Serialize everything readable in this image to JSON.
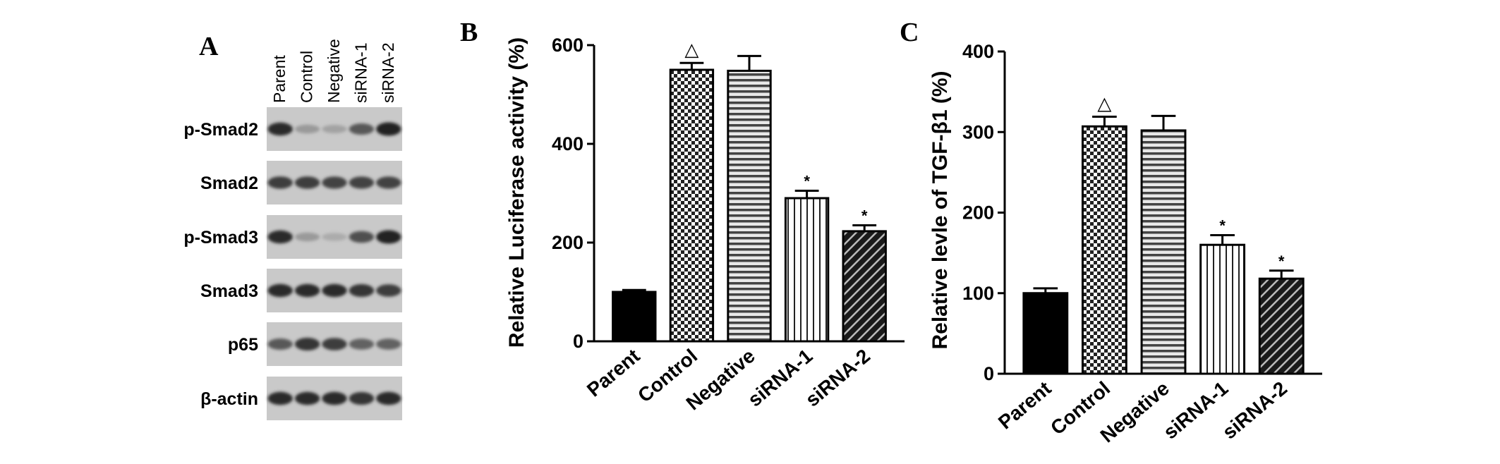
{
  "panel_a": {
    "label": "A",
    "lanes": [
      "Parent",
      "Control",
      "Negative",
      "siRNA-1",
      "siRNA-2"
    ],
    "rows": [
      {
        "label": "p-Smad2",
        "intensity": [
          0.85,
          0.25,
          0.2,
          0.6,
          0.9
        ]
      },
      {
        "label": "Smad2",
        "intensity": [
          0.75,
          0.75,
          0.72,
          0.72,
          0.72
        ]
      },
      {
        "label": "p-Smad3",
        "intensity": [
          0.85,
          0.25,
          0.15,
          0.65,
          0.9
        ]
      },
      {
        "label": "Smad3",
        "intensity": [
          0.85,
          0.85,
          0.85,
          0.8,
          0.75
        ]
      },
      {
        "label": "p65",
        "intensity": [
          0.6,
          0.8,
          0.75,
          0.55,
          0.55
        ]
      },
      {
        "label": "β-actin",
        "intensity": [
          0.85,
          0.85,
          0.85,
          0.8,
          0.85
        ]
      }
    ]
  },
  "chart_data": [
    {
      "type": "bar",
      "panel_label": "B",
      "categories": [
        "Parent",
        "Control",
        "Negative",
        "siRNA-1",
        "siRNA-2"
      ],
      "values": [
        100,
        550,
        548,
        290,
        223
      ],
      "errors": [
        4,
        14,
        30,
        15,
        12
      ],
      "annotations": [
        "",
        "△",
        "",
        "*",
        "*"
      ],
      "patterns": [
        "solid",
        "checker",
        "hstripes",
        "vstripes",
        "diagonal"
      ],
      "ylabel": "Relative Luciferase activity (%)",
      "ylim": [
        0,
        600
      ],
      "yticks": [
        0,
        200,
        400,
        600
      ]
    },
    {
      "type": "bar",
      "panel_label": "C",
      "categories": [
        "Parent",
        "Control",
        "Negative",
        "siRNA-1",
        "siRNA-2"
      ],
      "values": [
        100,
        307,
        302,
        160,
        118
      ],
      "errors": [
        6,
        12,
        18,
        12,
        10
      ],
      "annotations": [
        "",
        "△",
        "",
        "*",
        "*"
      ],
      "patterns": [
        "solid",
        "checker",
        "hstripes",
        "vstripes",
        "diagonal"
      ],
      "ylabel": "Relative levle of TGF-β1 (%)",
      "ylim": [
        0,
        400
      ],
      "yticks": [
        0,
        100,
        200,
        300,
        400
      ]
    }
  ]
}
